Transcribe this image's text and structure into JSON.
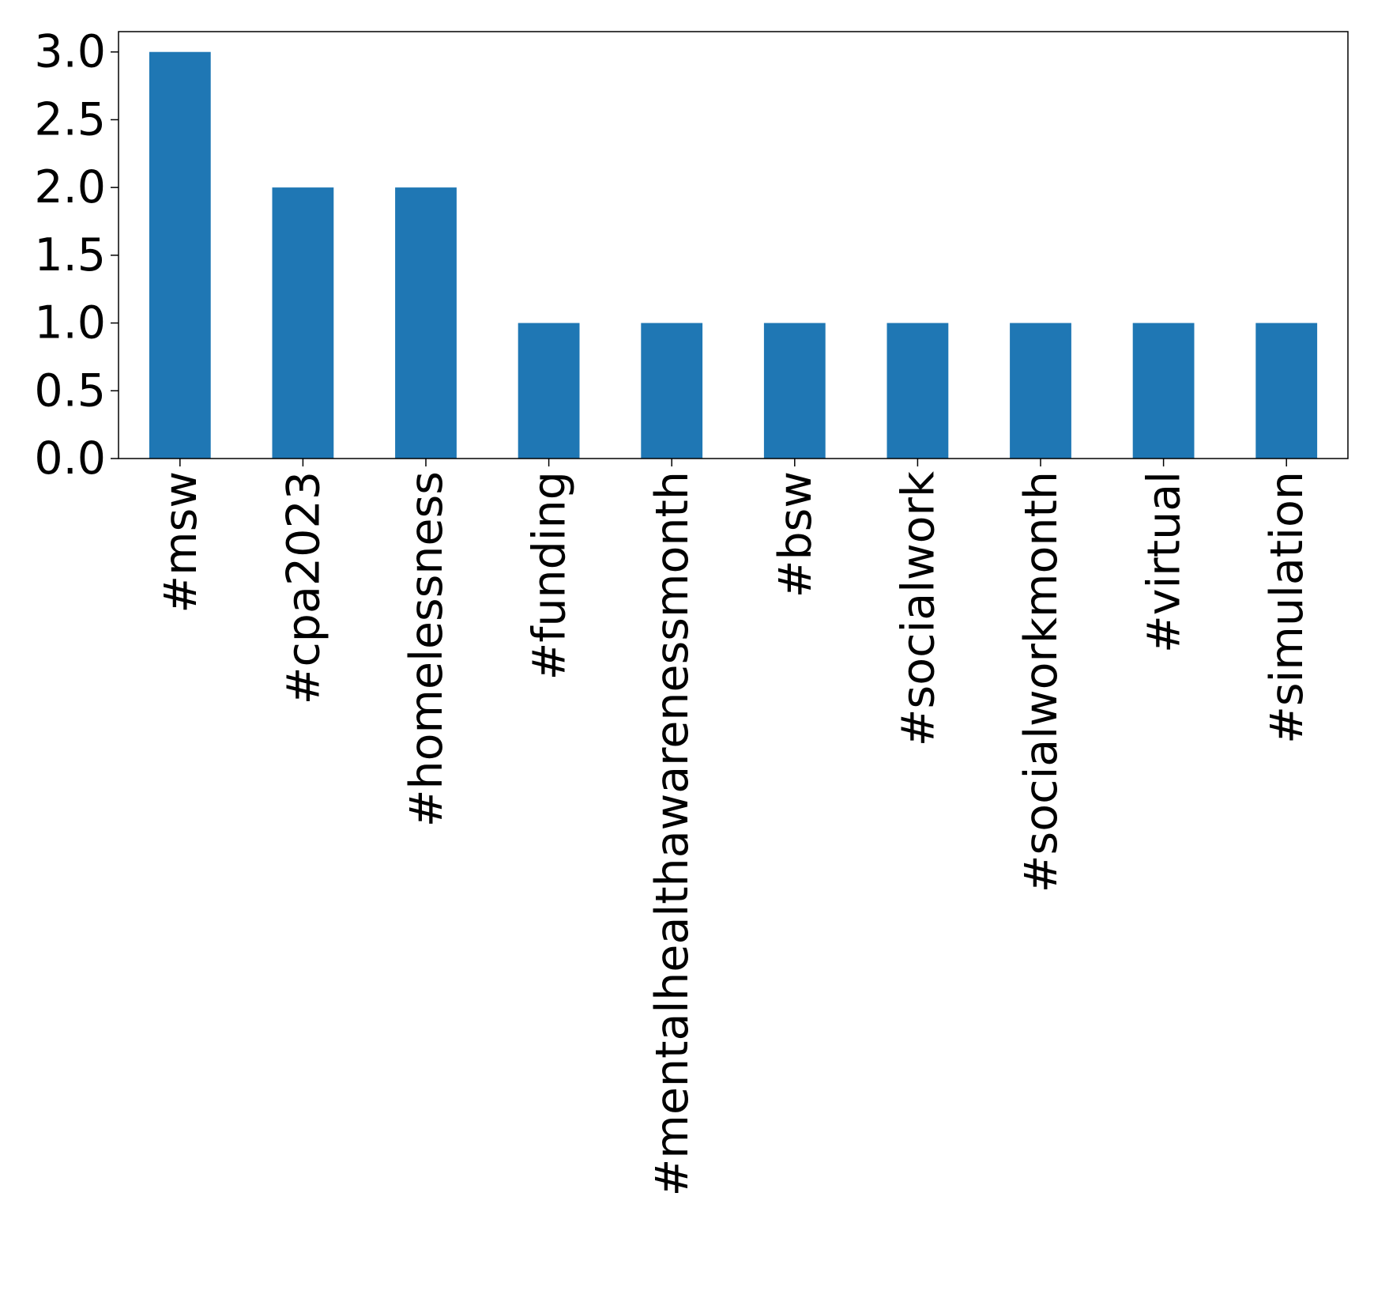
{
  "chart_data": {
    "type": "bar",
    "title": "",
    "xlabel": "",
    "ylabel": "",
    "categories": [
      "#msw",
      "#cpa2023",
      "#homelessness",
      "#funding",
      "#mentalhealthawarenessmonth",
      "#bsw",
      "#socialwork",
      "#socialworkmonth",
      "#virtual",
      "#simulation"
    ],
    "values": [
      3,
      2,
      2,
      1,
      1,
      1,
      1,
      1,
      1,
      1
    ],
    "ylim": [
      0,
      3.15
    ],
    "yticks": [
      "0.0",
      "0.5",
      "1.0",
      "1.5",
      "2.0",
      "2.5",
      "3.0"
    ],
    "grid": false,
    "legend": "none",
    "bar_color": "#1f77b4"
  }
}
